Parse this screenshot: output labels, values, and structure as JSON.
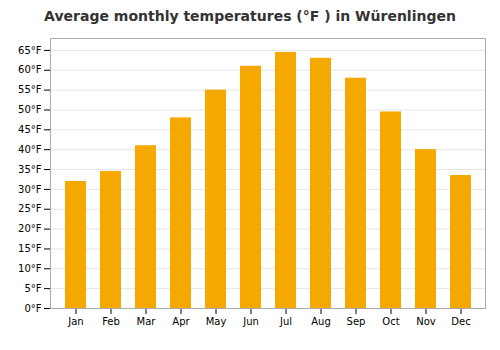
{
  "chart_data": {
    "type": "bar",
    "title": "Average monthly temperatures (°F ) in Würenlingen",
    "categories": [
      "Jan",
      "Feb",
      "Mar",
      "Apr",
      "May",
      "Jun",
      "Jul",
      "Aug",
      "Sep",
      "Oct",
      "Nov",
      "Dec"
    ],
    "values": [
      32,
      34.5,
      41,
      48,
      55,
      61,
      64.5,
      63,
      58,
      49.5,
      40,
      33.5
    ],
    "color": "#F5A800",
    "ylim": [
      0,
      68
    ],
    "yticks": [
      {
        "value": 0,
        "label": "0°F"
      },
      {
        "value": 5,
        "label": "5°F"
      },
      {
        "value": 10,
        "label": "10°F"
      },
      {
        "value": 15,
        "label": "15°F"
      },
      {
        "value": 20,
        "label": "20°F"
      },
      {
        "value": 25,
        "label": "25°F"
      },
      {
        "value": 30,
        "label": "30°F"
      },
      {
        "value": 35,
        "label": "35°F"
      },
      {
        "value": 40,
        "label": "40°F"
      },
      {
        "value": 45,
        "label": "45°F"
      },
      {
        "value": 50,
        "label": "50°F"
      },
      {
        "value": 55,
        "label": "55°F"
      },
      {
        "value": 60,
        "label": "60°F"
      },
      {
        "value": 65,
        "label": "65°F"
      }
    ],
    "grid": true
  }
}
